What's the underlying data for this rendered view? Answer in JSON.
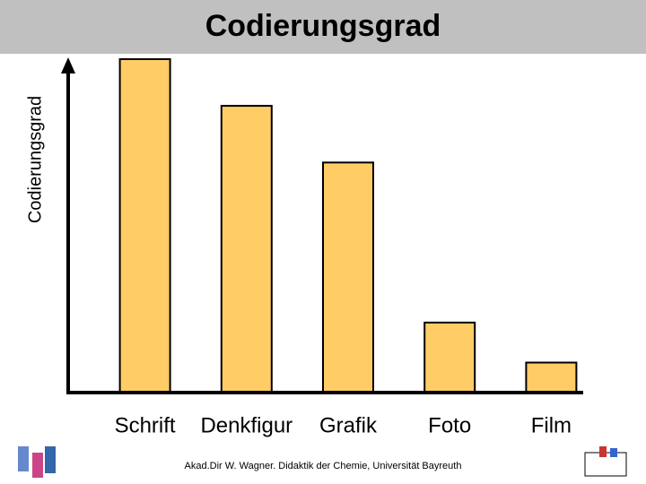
{
  "chart_data": {
    "type": "bar",
    "title": "Codierungsgrad",
    "y_label": "Codierungsgrad",
    "categories": [
      "Schrift",
      "Denkfigur",
      "Grafik",
      "Foto",
      "Film"
    ],
    "values": [
      100,
      86,
      69,
      21,
      9
    ],
    "color": "#ffcc66",
    "ylim": [
      0,
      100
    ],
    "footer": "Akad.Dir W. Wagner. Didaktik der Chemie, Universität Bayreuth"
  }
}
